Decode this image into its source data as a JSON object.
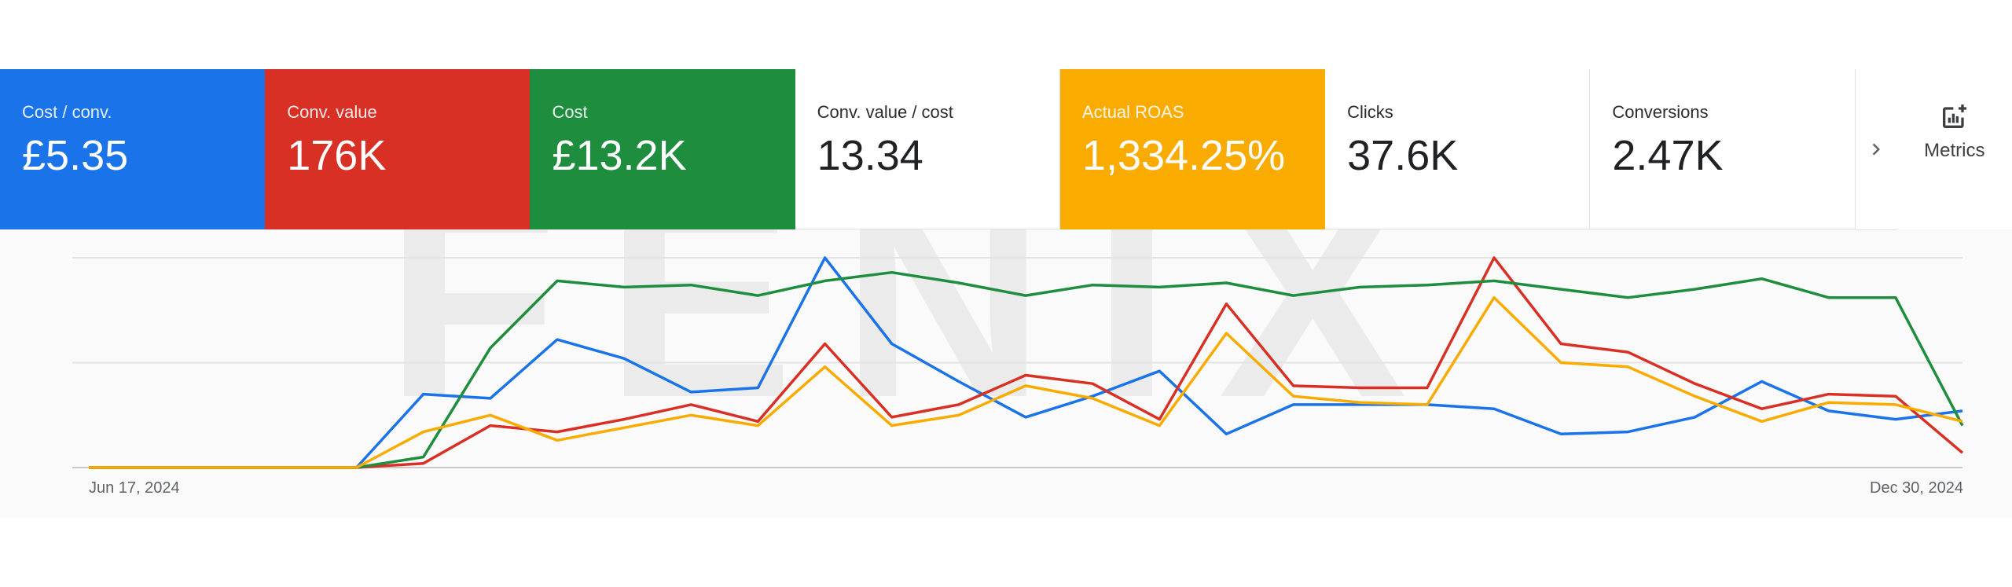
{
  "watermark": "FENIX",
  "tiles": [
    {
      "label": "Cost / conv.",
      "value": "£5.35",
      "selected": true,
      "color": "#1a73e8"
    },
    {
      "label": "Conv. value",
      "value": "176K",
      "selected": true,
      "color": "#d93025"
    },
    {
      "label": "Cost",
      "value": "£13.2K",
      "selected": true,
      "color": "#1e8e3e"
    },
    {
      "label": "Conv. value / cost",
      "value": "13.34",
      "selected": false
    },
    {
      "label": "Actual ROAS",
      "value": "1,334.25%",
      "selected": true,
      "color": "#f9ab00"
    },
    {
      "label": "Clicks",
      "value": "37.6K",
      "selected": false
    },
    {
      "label": "Conversions",
      "value": "2.47K",
      "selected": false
    }
  ],
  "next_icon": "chevron-right-icon",
  "metrics_button": {
    "label": "Metrics",
    "icon": "chart-add-icon"
  },
  "chart_data": {
    "type": "line",
    "x_start_label": "Jun 17, 2024",
    "x_end_label": "Dec 30, 2024",
    "ylim": [
      0,
      100
    ],
    "grid": true,
    "series": [
      {
        "name": "Cost / conv.",
        "color": "#1a73e8",
        "values": [
          0,
          0,
          0,
          0,
          0,
          35,
          33,
          61,
          52,
          36,
          38,
          100,
          59,
          41,
          24,
          34,
          46,
          16,
          30,
          30,
          30,
          28,
          16,
          17,
          24,
          41,
          27,
          23,
          27
        ]
      },
      {
        "name": "Conv. value",
        "color": "#d93025",
        "values": [
          0,
          0,
          0,
          0,
          0,
          2,
          20,
          17,
          23,
          30,
          22,
          59,
          24,
          30,
          44,
          40,
          23,
          78,
          39,
          38,
          38,
          100,
          59,
          55,
          40,
          28,
          35,
          34,
          7
        ]
      },
      {
        "name": "Cost",
        "color": "#1e8e3e",
        "values": [
          0,
          0,
          0,
          0,
          0,
          5,
          57,
          89,
          86,
          87,
          82,
          89,
          93,
          88,
          82,
          87,
          86,
          88,
          82,
          86,
          87,
          89,
          85,
          81,
          85,
          90,
          81,
          81,
          20
        ]
      },
      {
        "name": "Actual ROAS",
        "color": "#f9ab00",
        "values": [
          0,
          0,
          0,
          0,
          0,
          17,
          25,
          13,
          19,
          25,
          20,
          48,
          20,
          25,
          39,
          33,
          20,
          64,
          34,
          31,
          30,
          81,
          50,
          48,
          34,
          22,
          31,
          30,
          22
        ]
      }
    ]
  }
}
